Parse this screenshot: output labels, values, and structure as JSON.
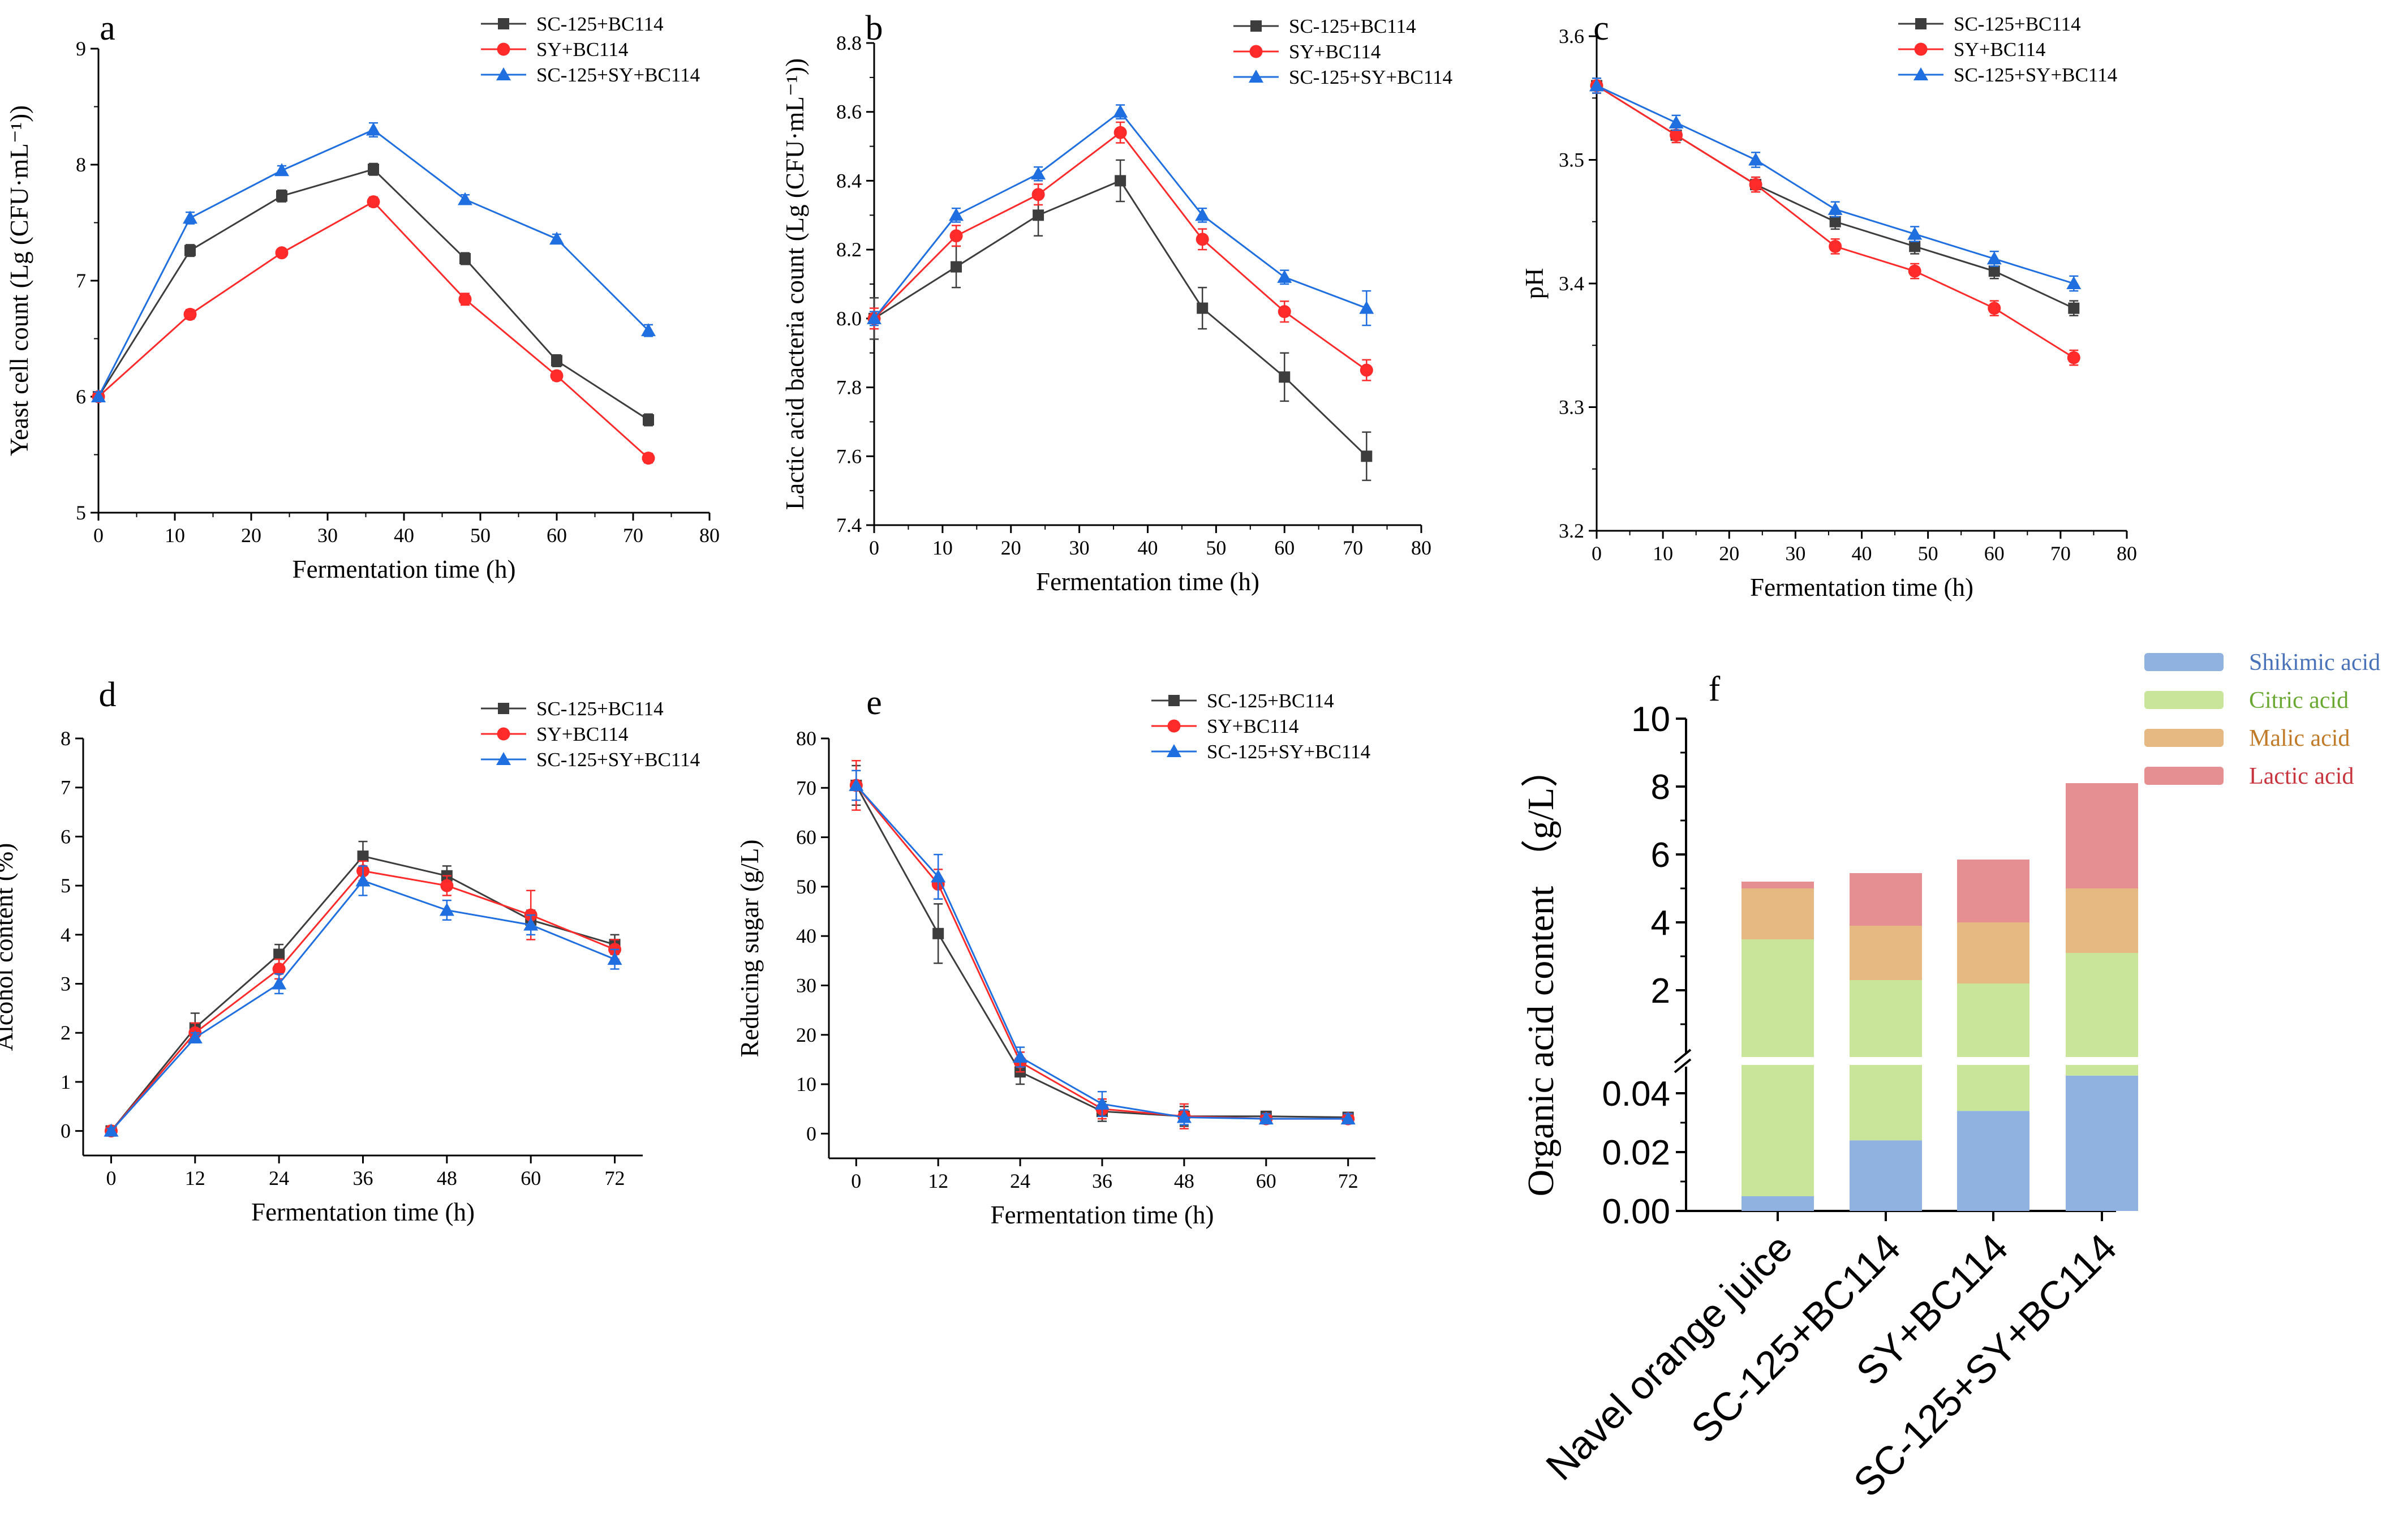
{
  "chart_data": [
    {
      "panel": "a",
      "type": "line",
      "xlabel": "Fermentation time (h)",
      "ylabel": "Yeast cell count (Lg (CFU·mL⁻¹))",
      "xlim": [
        0,
        80
      ],
      "ylim": [
        5,
        9
      ],
      "xticks": [
        0,
        10,
        20,
        30,
        40,
        50,
        60,
        70,
        80
      ],
      "yticks": [
        5,
        6,
        7,
        8,
        9
      ],
      "x": [
        0,
        12,
        24,
        36,
        48,
        60,
        72
      ],
      "series": [
        {
          "name": "SC-125+BC114",
          "color": "#3d3d3d",
          "marker": "square",
          "values": [
            6.0,
            7.26,
            7.73,
            7.96,
            7.19,
            6.31,
            5.8
          ],
          "errors": [
            0.04,
            0.05,
            0.05,
            0.05,
            0.05,
            0.05,
            0.05
          ]
        },
        {
          "name": "SY+BC114",
          "color": "#ff2a2a",
          "marker": "circle",
          "values": [
            6.0,
            6.71,
            7.24,
            7.68,
            6.84,
            6.18,
            5.47
          ],
          "errors": [
            0.03,
            0.04,
            0.03,
            0.04,
            0.05,
            0.04,
            0.04
          ]
        },
        {
          "name": "SC-125+SY+BC114",
          "color": "#1f6fe0",
          "marker": "triangle",
          "values": [
            6.0,
            7.54,
            7.95,
            8.3,
            7.7,
            7.36,
            6.57
          ],
          "errors": [
            0.04,
            0.05,
            0.04,
            0.06,
            0.04,
            0.04,
            0.05
          ]
        }
      ]
    },
    {
      "panel": "b",
      "type": "line",
      "xlabel": "Fermentation time (h)",
      "ylabel": "Lactic acid bacteria count (Lg (CFU·mL⁻¹))",
      "xlim": [
        0,
        80
      ],
      "ylim": [
        7.4,
        8.8
      ],
      "xticks": [
        0,
        10,
        20,
        30,
        40,
        50,
        60,
        70,
        80
      ],
      "yticks": [
        7.4,
        7.6,
        7.8,
        8.0,
        8.2,
        8.4,
        8.6,
        8.8
      ],
      "x": [
        0,
        12,
        24,
        36,
        48,
        60,
        72
      ],
      "series": [
        {
          "name": "SC-125+BC114",
          "color": "#3d3d3d",
          "marker": "square",
          "values": [
            8.0,
            8.15,
            8.3,
            8.4,
            8.03,
            7.83,
            7.6
          ],
          "errors": [
            0.06,
            0.06,
            0.06,
            0.06,
            0.06,
            0.07,
            0.07
          ]
        },
        {
          "name": "SY+BC114",
          "color": "#ff2a2a",
          "marker": "circle",
          "values": [
            8.0,
            8.24,
            8.36,
            8.54,
            8.23,
            8.02,
            7.85
          ],
          "errors": [
            0.03,
            0.03,
            0.03,
            0.03,
            0.03,
            0.03,
            0.03
          ]
        },
        {
          "name": "SC-125+SY+BC114",
          "color": "#1f6fe0",
          "marker": "triangle",
          "values": [
            8.0,
            8.3,
            8.42,
            8.6,
            8.3,
            8.12,
            8.03
          ],
          "errors": [
            0.02,
            0.02,
            0.02,
            0.02,
            0.02,
            0.02,
            0.05
          ]
        }
      ]
    },
    {
      "panel": "c",
      "type": "line",
      "xlabel": "Fermentation time (h)",
      "ylabel": "pH",
      "xlim": [
        0,
        80
      ],
      "ylim": [
        3.2,
        3.6
      ],
      "xticks": [
        0,
        10,
        20,
        30,
        40,
        50,
        60,
        70,
        80
      ],
      "yticks": [
        3.2,
        3.3,
        3.4,
        3.5,
        3.6
      ],
      "x": [
        0,
        12,
        24,
        36,
        48,
        60,
        72
      ],
      "series": [
        {
          "name": "SC-125+BC114",
          "color": "#3d3d3d",
          "marker": "square",
          "values": [
            3.56,
            3.52,
            3.48,
            3.45,
            3.43,
            3.41,
            3.38
          ],
          "errors": [
            0.006,
            0.006,
            0.006,
            0.006,
            0.006,
            0.006,
            0.006
          ]
        },
        {
          "name": "SY+BC114",
          "color": "#ff2a2a",
          "marker": "circle",
          "values": [
            3.56,
            3.52,
            3.48,
            3.43,
            3.41,
            3.38,
            3.34
          ],
          "errors": [
            0.006,
            0.006,
            0.006,
            0.006,
            0.006,
            0.006,
            0.006
          ]
        },
        {
          "name": "SC-125+SY+BC114",
          "color": "#1f6fe0",
          "marker": "triangle",
          "values": [
            3.56,
            3.53,
            3.5,
            3.46,
            3.44,
            3.42,
            3.4
          ],
          "errors": [
            0.006,
            0.006,
            0.006,
            0.006,
            0.006,
            0.006,
            0.006
          ]
        }
      ]
    },
    {
      "panel": "d",
      "type": "line",
      "xlabel": "Fermentation time (h)",
      "ylabel": "Alcohol content (%)",
      "xlim": [
        -4,
        76
      ],
      "ylim": [
        -0.5,
        8
      ],
      "xticks": [
        0,
        12,
        24,
        36,
        48,
        60,
        72
      ],
      "yticks": [
        0,
        1,
        2,
        3,
        4,
        5,
        6,
        7,
        8
      ],
      "x": [
        0,
        12,
        24,
        36,
        48,
        60,
        72
      ],
      "series": [
        {
          "name": "SC-125+BC114",
          "color": "#3d3d3d",
          "marker": "square",
          "values": [
            0,
            2.1,
            3.6,
            5.6,
            5.2,
            4.3,
            3.8
          ],
          "errors": [
            0.05,
            0.3,
            0.2,
            0.3,
            0.2,
            0.2,
            0.2
          ]
        },
        {
          "name": "SY+BC114",
          "color": "#ff2a2a",
          "marker": "circle",
          "values": [
            0,
            2.0,
            3.3,
            5.3,
            5.0,
            4.4,
            3.7
          ],
          "errors": [
            0.05,
            0.2,
            0.2,
            0.2,
            0.2,
            0.5,
            0.2
          ]
        },
        {
          "name": "SC-125+SY+BC114",
          "color": "#1f6fe0",
          "marker": "triangle",
          "values": [
            0,
            1.9,
            3.0,
            5.1,
            4.5,
            4.2,
            3.5
          ],
          "errors": [
            0.05,
            0.1,
            0.2,
            0.3,
            0.2,
            0.2,
            0.2
          ]
        }
      ]
    },
    {
      "panel": "e",
      "type": "line",
      "xlabel": "Fermentation time (h)",
      "ylabel": "Reducing sugar (g/L)",
      "xlim": [
        -4,
        76
      ],
      "ylim": [
        -5,
        80
      ],
      "xticks": [
        0,
        12,
        24,
        36,
        48,
        60,
        72
      ],
      "yticks": [
        0,
        10,
        20,
        30,
        40,
        50,
        60,
        70,
        80
      ],
      "x": [
        0,
        12,
        24,
        36,
        48,
        60,
        72
      ],
      "series": [
        {
          "name": "SC-125+BC114",
          "color": "#3d3d3d",
          "marker": "square",
          "values": [
            70.5,
            40.5,
            12.5,
            4.5,
            3.5,
            3.5,
            3.3
          ],
          "errors": [
            4,
            6,
            2.5,
            2,
            2,
            1,
            1
          ]
        },
        {
          "name": "SY+BC114",
          "color": "#ff2a2a",
          "marker": "circle",
          "values": [
            70.5,
            50.5,
            14.5,
            5.0,
            3.5,
            3.0,
            3.0
          ],
          "errors": [
            5,
            3,
            2,
            2,
            2.5,
            1,
            1
          ]
        },
        {
          "name": "SC-125+SY+BC114",
          "color": "#1f6fe0",
          "marker": "triangle",
          "values": [
            70.5,
            52.0,
            15.5,
            6.0,
            3.3,
            3.0,
            3.0
          ],
          "errors": [
            3,
            4.5,
            2,
            2.5,
            1.5,
            1,
            1
          ]
        }
      ]
    },
    {
      "panel": "f",
      "type": "bar",
      "stacked": true,
      "broken_axis": true,
      "ylabel": "Organic acid content （g/L）",
      "categories": [
        "Navel orange juice",
        "SC-125+BC114",
        "SY+BC114",
        "SC-125+SY+BC114"
      ],
      "lower_yticks": [
        "0.00",
        "0.02",
        "0.04"
      ],
      "upper_yticks": [
        "2",
        "4",
        "6",
        "8",
        "10"
      ],
      "lower_ylim": [
        0,
        0.05
      ],
      "upper_ylim": [
        0,
        10
      ],
      "series": [
        {
          "name": "Shikimic acid",
          "color": "#8fb2e0",
          "label_color": "#4a72b8",
          "values": [
            0.005,
            0.024,
            0.034,
            0.046
          ]
        },
        {
          "name": "Citric acid",
          "color": "#c8e59a",
          "label_color": "#6aa832",
          "values": [
            3.5,
            2.3,
            2.2,
            3.1
          ]
        },
        {
          "name": "Malic acid",
          "color": "#e5b981",
          "label_color": "#c07a28",
          "values": [
            1.5,
            1.6,
            1.8,
            1.9
          ]
        },
        {
          "name": "Lactic acid",
          "color": "#e58f92",
          "label_color": "#c8343e",
          "values": [
            0.2,
            1.55,
            1.85,
            3.1
          ]
        }
      ]
    }
  ],
  "panel_labels": [
    "a",
    "b",
    "c",
    "d",
    "e",
    "f"
  ]
}
